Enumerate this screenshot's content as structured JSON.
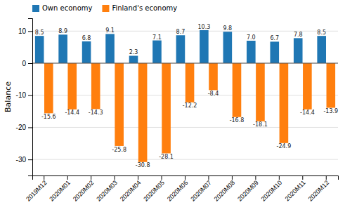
{
  "chart_data": {
    "type": "bar",
    "categories": [
      "2019M12",
      "2020M01",
      "2020M02",
      "2020M03",
      "2020M04",
      "2020M05",
      "2020M06",
      "2020M07",
      "2020M08",
      "2020M09",
      "2020M10",
      "2020M11",
      "2020M12"
    ],
    "series": [
      {
        "name": "Own economy",
        "values": [
          8.5,
          8.9,
          6.8,
          9.1,
          2.3,
          7.1,
          8.7,
          10.3,
          9.8,
          7.0,
          6.7,
          7.8,
          8.5
        ],
        "value_labels": [
          "8.5",
          "8.9",
          "6.8",
          "9.1",
          "2.3",
          "7.1",
          "8.7",
          "10.3",
          "9.8",
          "7.0",
          "6.7",
          "7.8",
          "8.5"
        ]
      },
      {
        "name": "Finland's economy",
        "values": [
          -15.6,
          -14.4,
          -14.3,
          -25.8,
          -30.8,
          -28.1,
          -12.2,
          -8.4,
          -16.8,
          -18.1,
          -24.9,
          -14.4,
          -13.9
        ]
      }
    ],
    "ylabel": "Balance",
    "ylim": [
      -35,
      14
    ],
    "yticks": [
      -30,
      -20,
      -10,
      0,
      10
    ],
    "grid": true,
    "legend": "upper left",
    "data_labels": true
  }
}
